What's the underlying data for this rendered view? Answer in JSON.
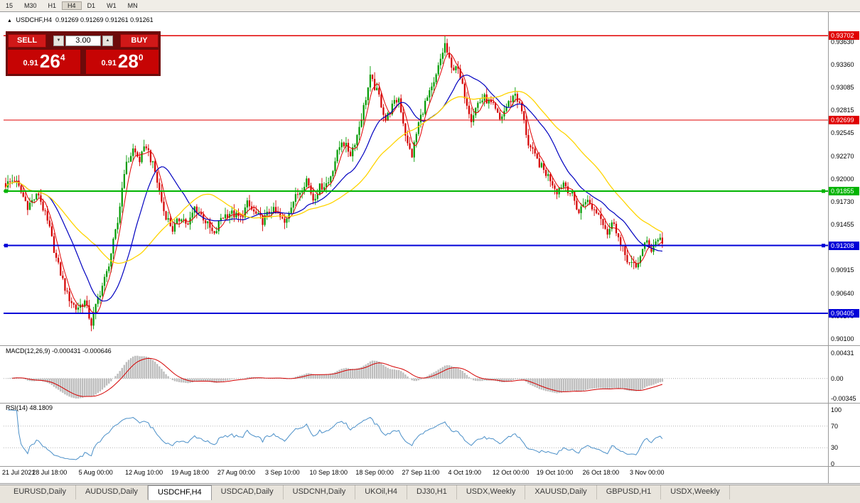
{
  "toolbar": {
    "periods": [
      "15",
      "M30",
      "H1",
      "H4",
      "D1",
      "W1",
      "MN"
    ],
    "active_period": "H4"
  },
  "chart_header": {
    "collapse_icon": "▲",
    "symbol": "USDCHF,H4",
    "ohlc": "0.91269 0.91269 0.91261 0.91261"
  },
  "trade_panel": {
    "sell_label": "SELL",
    "buy_label": "BUY",
    "volume": "3.00",
    "spin_down_icon": "▼",
    "spin_up_icon": "▲",
    "sell_price": {
      "prefix": "0.91",
      "big": "26",
      "sup": "4"
    },
    "buy_price": {
      "prefix": "0.91",
      "big": "28",
      "sup": "0"
    }
  },
  "bottom_tabs": {
    "tabs": [
      "EURUSD,Daily",
      "AUDUSD,Daily",
      "USDCHF,H4",
      "USDCAD,Daily",
      "USDCNH,Daily",
      "UKOil,H4",
      "DJ30,H1",
      "USDX,Weekly",
      "XAUUSD,Daily",
      "GBPUSD,H1",
      "USDX,Weekly"
    ],
    "active_index": 2
  },
  "chart_data": {
    "type": "candlestick",
    "symbol": "USDCHF",
    "timeframe": "H4",
    "colors": {
      "up": "#009a00",
      "down": "#d40000",
      "ma_fast": "#e00000",
      "ma_mid": "#0000c0",
      "ma_slow": "#ffd400",
      "macd_hist": "#bdbdbd",
      "macd_signal": "#d40000",
      "rsi": "#4a8fc8"
    },
    "price_axis": {
      "min": 0.9004,
      "max": 0.9394,
      "labels": [
        {
          "text": "0.93630",
          "price": 0.9363
        },
        {
          "text": "0.93360",
          "price": 0.9336
        },
        {
          "text": "0.93085",
          "price": 0.93085
        },
        {
          "text": "0.92815",
          "price": 0.92815
        },
        {
          "text": "0.92545",
          "price": 0.92545
        },
        {
          "text": "0.92270",
          "price": 0.9227
        },
        {
          "text": "0.92000",
          "price": 0.92
        },
        {
          "text": "0.91730",
          "price": 0.9173
        },
        {
          "text": "0.91455",
          "price": 0.91455
        },
        {
          "text": "0.90915",
          "price": 0.90915
        },
        {
          "text": "0.90640",
          "price": 0.9064
        },
        {
          "text": "0.90370",
          "price": 0.9037
        },
        {
          "text": "0.90100",
          "price": 0.901
        }
      ]
    },
    "hlines": [
      {
        "price": 0.93702,
        "label": "0.93702",
        "color": "#e00000",
        "width": 1.4,
        "handles": false
      },
      {
        "price": 0.92699,
        "label": "0.92699",
        "color": "#e00000",
        "width": 1.4,
        "handles": false
      },
      {
        "price": 0.91855,
        "label": "0.91855",
        "color": "#00b400",
        "width": 2,
        "handles": true
      },
      {
        "price": 0.91208,
        "label": "0.91208",
        "color": "#0000d8",
        "width": 2,
        "handles": true
      },
      {
        "price": 0.90405,
        "label": "0.90405",
        "color": "#0000d8",
        "width": 2,
        "handles": false
      }
    ],
    "time_labels": [
      {
        "text": "21 Jul 2021",
        "index": 0
      },
      {
        "text": "28 Jul 18:00",
        "index": 20
      },
      {
        "text": "5 Aug 00:00",
        "index": 41
      },
      {
        "text": "12 Aug 10:00",
        "index": 63
      },
      {
        "text": "19 Aug 18:00",
        "index": 84
      },
      {
        "text": "27 Aug 00:00",
        "index": 105
      },
      {
        "text": "3 Sep 10:00",
        "index": 126
      },
      {
        "text": "10 Sep 18:00",
        "index": 147
      },
      {
        "text": "18 Sep 00:00",
        "index": 168
      },
      {
        "text": "27 Sep 11:00",
        "index": 189
      },
      {
        "text": "4 Oct 19:00",
        "index": 209
      },
      {
        "text": "12 Oct 00:00",
        "index": 230
      },
      {
        "text": "19 Oct 10:00",
        "index": 250
      },
      {
        "text": "26 Oct 18:00",
        "index": 271
      },
      {
        "text": "3 Nov 00:00",
        "index": 292
      }
    ],
    "candles": {
      "count": 300,
      "noise": 0.0005,
      "wick": 0.0008,
      "anchors": [
        [
          0,
          0.9193
        ],
        [
          4,
          0.92
        ],
        [
          10,
          0.9168
        ],
        [
          15,
          0.9182
        ],
        [
          20,
          0.914
        ],
        [
          23,
          0.9105
        ],
        [
          28,
          0.9062
        ],
        [
          32,
          0.9046
        ],
        [
          36,
          0.9054
        ],
        [
          39,
          0.9028
        ],
        [
          42,
          0.9058
        ],
        [
          46,
          0.9088
        ],
        [
          51,
          0.9148
        ],
        [
          54,
          0.921
        ],
        [
          58,
          0.9235
        ],
        [
          61,
          0.9222
        ],
        [
          64,
          0.924
        ],
        [
          68,
          0.9208
        ],
        [
          72,
          0.9162
        ],
        [
          76,
          0.914
        ],
        [
          80,
          0.9156
        ],
        [
          83,
          0.9144
        ],
        [
          86,
          0.9166
        ],
        [
          90,
          0.9154
        ],
        [
          95,
          0.9132
        ],
        [
          98,
          0.9154
        ],
        [
          102,
          0.916
        ],
        [
          107,
          0.9153
        ],
        [
          110,
          0.917
        ],
        [
          113,
          0.916
        ],
        [
          117,
          0.915
        ],
        [
          121,
          0.9164
        ],
        [
          124,
          0.9157
        ],
        [
          127,
          0.9147
        ],
        [
          130,
          0.917
        ],
        [
          134,
          0.9186
        ],
        [
          137,
          0.92
        ],
        [
          140,
          0.9176
        ],
        [
          143,
          0.919
        ],
        [
          147,
          0.9196
        ],
        [
          150,
          0.9222
        ],
        [
          153,
          0.9246
        ],
        [
          157,
          0.923
        ],
        [
          160,
          0.9252
        ],
        [
          163,
          0.9285
        ],
        [
          166,
          0.932
        ],
        [
          170,
          0.9298
        ],
        [
          173,
          0.927
        ],
        [
          176,
          0.9286
        ],
        [
          179,
          0.9296
        ],
        [
          183,
          0.924
        ],
        [
          185,
          0.9228
        ],
        [
          188,
          0.9266
        ],
        [
          191,
          0.929
        ],
        [
          195,
          0.9312
        ],
        [
          198,
          0.9342
        ],
        [
          200,
          0.936
        ],
        [
          203,
          0.933
        ],
        [
          205,
          0.9336
        ],
        [
          209,
          0.93
        ],
        [
          212,
          0.9272
        ],
        [
          215,
          0.929
        ],
        [
          218,
          0.9296
        ],
        [
          222,
          0.9286
        ],
        [
          225,
          0.927
        ],
        [
          228,
          0.9286
        ],
        [
          232,
          0.9302
        ],
        [
          235,
          0.928
        ],
        [
          238,
          0.9242
        ],
        [
          241,
          0.9226
        ],
        [
          245,
          0.921
        ],
        [
          248,
          0.92
        ],
        [
          251,
          0.9186
        ],
        [
          254,
          0.9196
        ],
        [
          258,
          0.918
        ],
        [
          261,
          0.916
        ],
        [
          264,
          0.9176
        ],
        [
          267,
          0.9166
        ],
        [
          271,
          0.9156
        ],
        [
          274,
          0.9136
        ],
        [
          277,
          0.915
        ],
        [
          280,
          0.912
        ],
        [
          284,
          0.91
        ],
        [
          287,
          0.9094
        ],
        [
          289,
          0.911
        ],
        [
          292,
          0.9126
        ],
        [
          294,
          0.9116
        ],
        [
          297,
          0.913
        ],
        [
          299,
          0.9126
        ]
      ],
      "overrides": [
        {
          "index": 39,
          "low": 0.9019
        },
        {
          "index": 166,
          "high": 0.9334
        },
        {
          "index": 200,
          "high": 0.93702
        }
      ]
    },
    "moving_averages": [
      {
        "period": 5,
        "color": "#e00000",
        "width": 1
      },
      {
        "period": 20,
        "color": "#0000c0",
        "width": 1.2
      },
      {
        "period": 42,
        "color": "#ffd400",
        "width": 1.3
      }
    ],
    "indicators": [
      {
        "name": "MACD",
        "label": "MACD(12,26,9) -0.000431 -0.000646",
        "fast": 12,
        "slow": 26,
        "signal": 9,
        "last_values": [
          "-0.000431",
          "-0.000646"
        ],
        "range": [
          -0.0038,
          0.0052
        ],
        "axis_labels": [
          {
            "text": "0.00431",
            "value": 0.00431
          },
          {
            "text": "0.00",
            "value": 0
          },
          {
            "text": "-0.00345",
            "value": -0.00345
          }
        ]
      },
      {
        "name": "RSI",
        "label": "RSI(14) 48.1809",
        "period": 14,
        "last_value": "48.1809",
        "range": [
          0,
          100
        ],
        "levels": [
          70,
          30
        ],
        "axis_labels": [
          {
            "text": "100",
            "value": 100
          },
          {
            "text": "70",
            "value": 70
          },
          {
            "text": "30",
            "value": 30
          },
          {
            "text": "0",
            "value": 0
          }
        ]
      }
    ]
  }
}
